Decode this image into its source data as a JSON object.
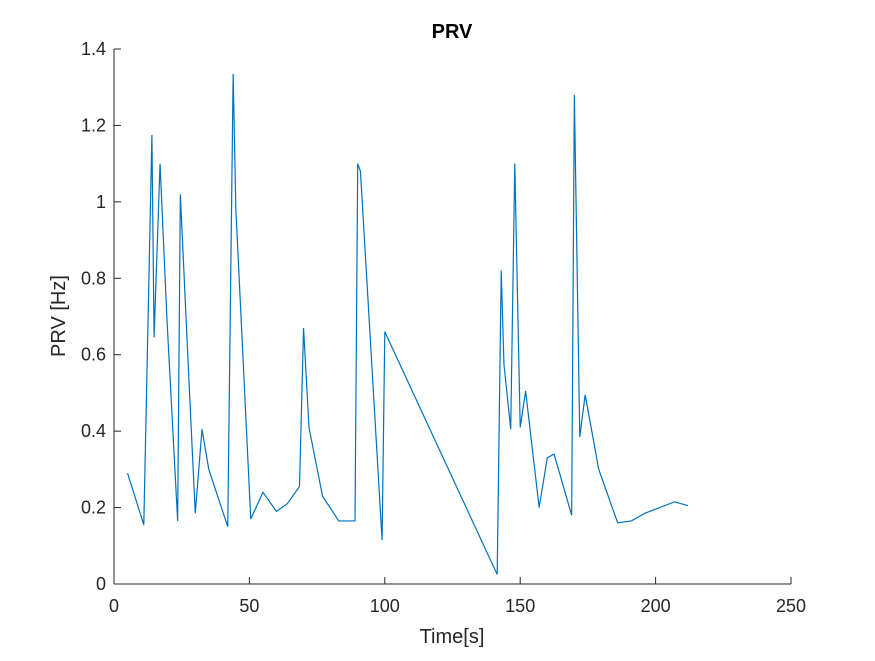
{
  "chart_data": {
    "type": "line",
    "title": "PRV",
    "xlabel": "Time[s]",
    "ylabel": "PRV [Hz]",
    "xlim": [
      0,
      250
    ],
    "ylim": [
      0,
      1.4
    ],
    "xticks": [
      0,
      50,
      100,
      150,
      200,
      250
    ],
    "yticks": [
      0,
      0.2,
      0.4,
      0.6,
      0.8,
      1,
      1.2,
      1.4
    ],
    "xtick_labels": [
      "0",
      "50",
      "100",
      "150",
      "200",
      "250"
    ],
    "ytick_labels": [
      "0",
      "0.2",
      "0.4",
      "0.6",
      "0.8",
      "1",
      "1.2",
      "1.4"
    ],
    "grid": false,
    "line_color": "#0072BD",
    "series": [
      {
        "x": [
          5,
          11,
          14,
          14.8,
          17,
          19.5,
          23.5,
          24.5,
          27,
          30,
          32.5,
          35,
          42,
          44,
          45,
          50.5,
          55,
          60,
          64,
          68.5,
          70,
          72,
          77,
          83,
          89,
          90,
          91,
          92.5,
          99,
          100,
          141.5,
          143,
          144,
          146.5,
          148,
          150,
          152,
          157,
          160,
          162.5,
          169,
          170,
          172,
          174,
          179,
          186,
          191,
          196,
          207,
          212
        ],
        "y": [
          0.29,
          0.155,
          1.175,
          0.645,
          1.1,
          0.7,
          0.165,
          1.02,
          0.635,
          0.185,
          0.405,
          0.3,
          0.15,
          1.335,
          0.98,
          0.17,
          0.24,
          0.19,
          0.21,
          0.255,
          0.67,
          0.41,
          0.23,
          0.165,
          0.165,
          1.1,
          1.08,
          0.9,
          0.115,
          0.66,
          0.025,
          0.82,
          0.575,
          0.405,
          1.1,
          0.41,
          0.505,
          0.2,
          0.33,
          0.34,
          0.18,
          1.28,
          0.385,
          0.495,
          0.3,
          0.16,
          0.165,
          0.185,
          0.215,
          0.205
        ]
      }
    ]
  }
}
